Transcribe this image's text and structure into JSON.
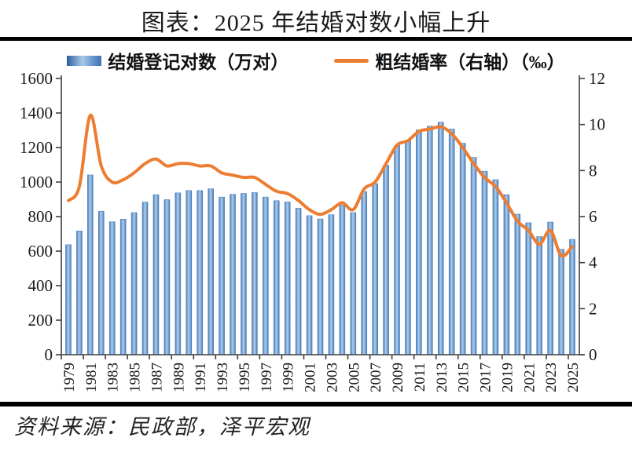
{
  "title": "图表：2025 年结婚对数小幅上升",
  "source": "资料来源：民政部，泽平宏观",
  "colors": {
    "bar_edge": "#4f81bd",
    "bar_dark": "#3f72b0",
    "bar_light": "#aecdec",
    "line": "#ed7d31",
    "axis": "#404040",
    "text": "#1a1a1a",
    "rule": "#000000"
  },
  "legend": [
    {
      "label": "结婚登记对数（万对）",
      "swatch": "gradient-bar-swatch"
    },
    {
      "label": "粗结婚率（右轴）（‰）",
      "swatch": "orange-line-swatch"
    }
  ],
  "chart_data": {
    "type": "bar",
    "title": "图表：2025 年结婚对数小幅上升",
    "categories": [
      1979,
      1980,
      1981,
      1982,
      1983,
      1984,
      1985,
      1986,
      1987,
      1988,
      1989,
      1990,
      1991,
      1992,
      1993,
      1994,
      1995,
      1996,
      1997,
      1998,
      1999,
      2000,
      2001,
      2002,
      2003,
      2004,
      2005,
      2006,
      2007,
      2008,
      2009,
      2010,
      2011,
      2012,
      2013,
      2014,
      2015,
      2016,
      2017,
      2018,
      2019,
      2020,
      2021,
      2022,
      2023,
      2024,
      2025
    ],
    "series": [
      {
        "name": "结婚登记对数（万对）",
        "type": "bar",
        "axis": "left",
        "values": [
          637,
          717,
          1041,
          831,
          770,
          785,
          823,
          884,
          927,
          898,
          937,
          951,
          951,
          961,
          913,
          929,
          934,
          939,
          913,
          892,
          885,
          848,
          805,
          786,
          811,
          867,
          823,
          945,
          991,
          1098,
          1212,
          1241,
          1302,
          1324,
          1347,
          1307,
          1225,
          1143,
          1063,
          1014,
          927,
          814,
          764,
          684,
          768,
          611,
          668
        ]
      },
      {
        "name": "粗结婚率（右轴）（‰）",
        "type": "line",
        "axis": "right",
        "values": [
          6.7,
          7.3,
          10.4,
          8.2,
          7.5,
          7.6,
          7.9,
          8.3,
          8.5,
          8.2,
          8.3,
          8.3,
          8.2,
          8.2,
          7.9,
          7.8,
          7.7,
          7.7,
          7.4,
          7.1,
          7.0,
          6.7,
          6.3,
          6.1,
          6.3,
          6.6,
          6.3,
          7.2,
          7.5,
          8.3,
          9.1,
          9.3,
          9.7,
          9.8,
          9.9,
          9.6,
          9.0,
          8.3,
          7.7,
          7.3,
          6.6,
          5.8,
          5.4,
          4.8,
          5.4,
          4.3,
          4.7
        ]
      }
    ],
    "left_axis": {
      "min": 0,
      "max": 1600,
      "step": 200,
      "ticks": [
        0,
        200,
        400,
        600,
        800,
        1000,
        1200,
        1400,
        1600
      ]
    },
    "right_axis": {
      "min": 0,
      "max": 12,
      "step": 2,
      "ticks": [
        0,
        2,
        4,
        6,
        8,
        10,
        12
      ]
    },
    "x_label_interval": 2,
    "grid": false,
    "legend_position": "top"
  }
}
